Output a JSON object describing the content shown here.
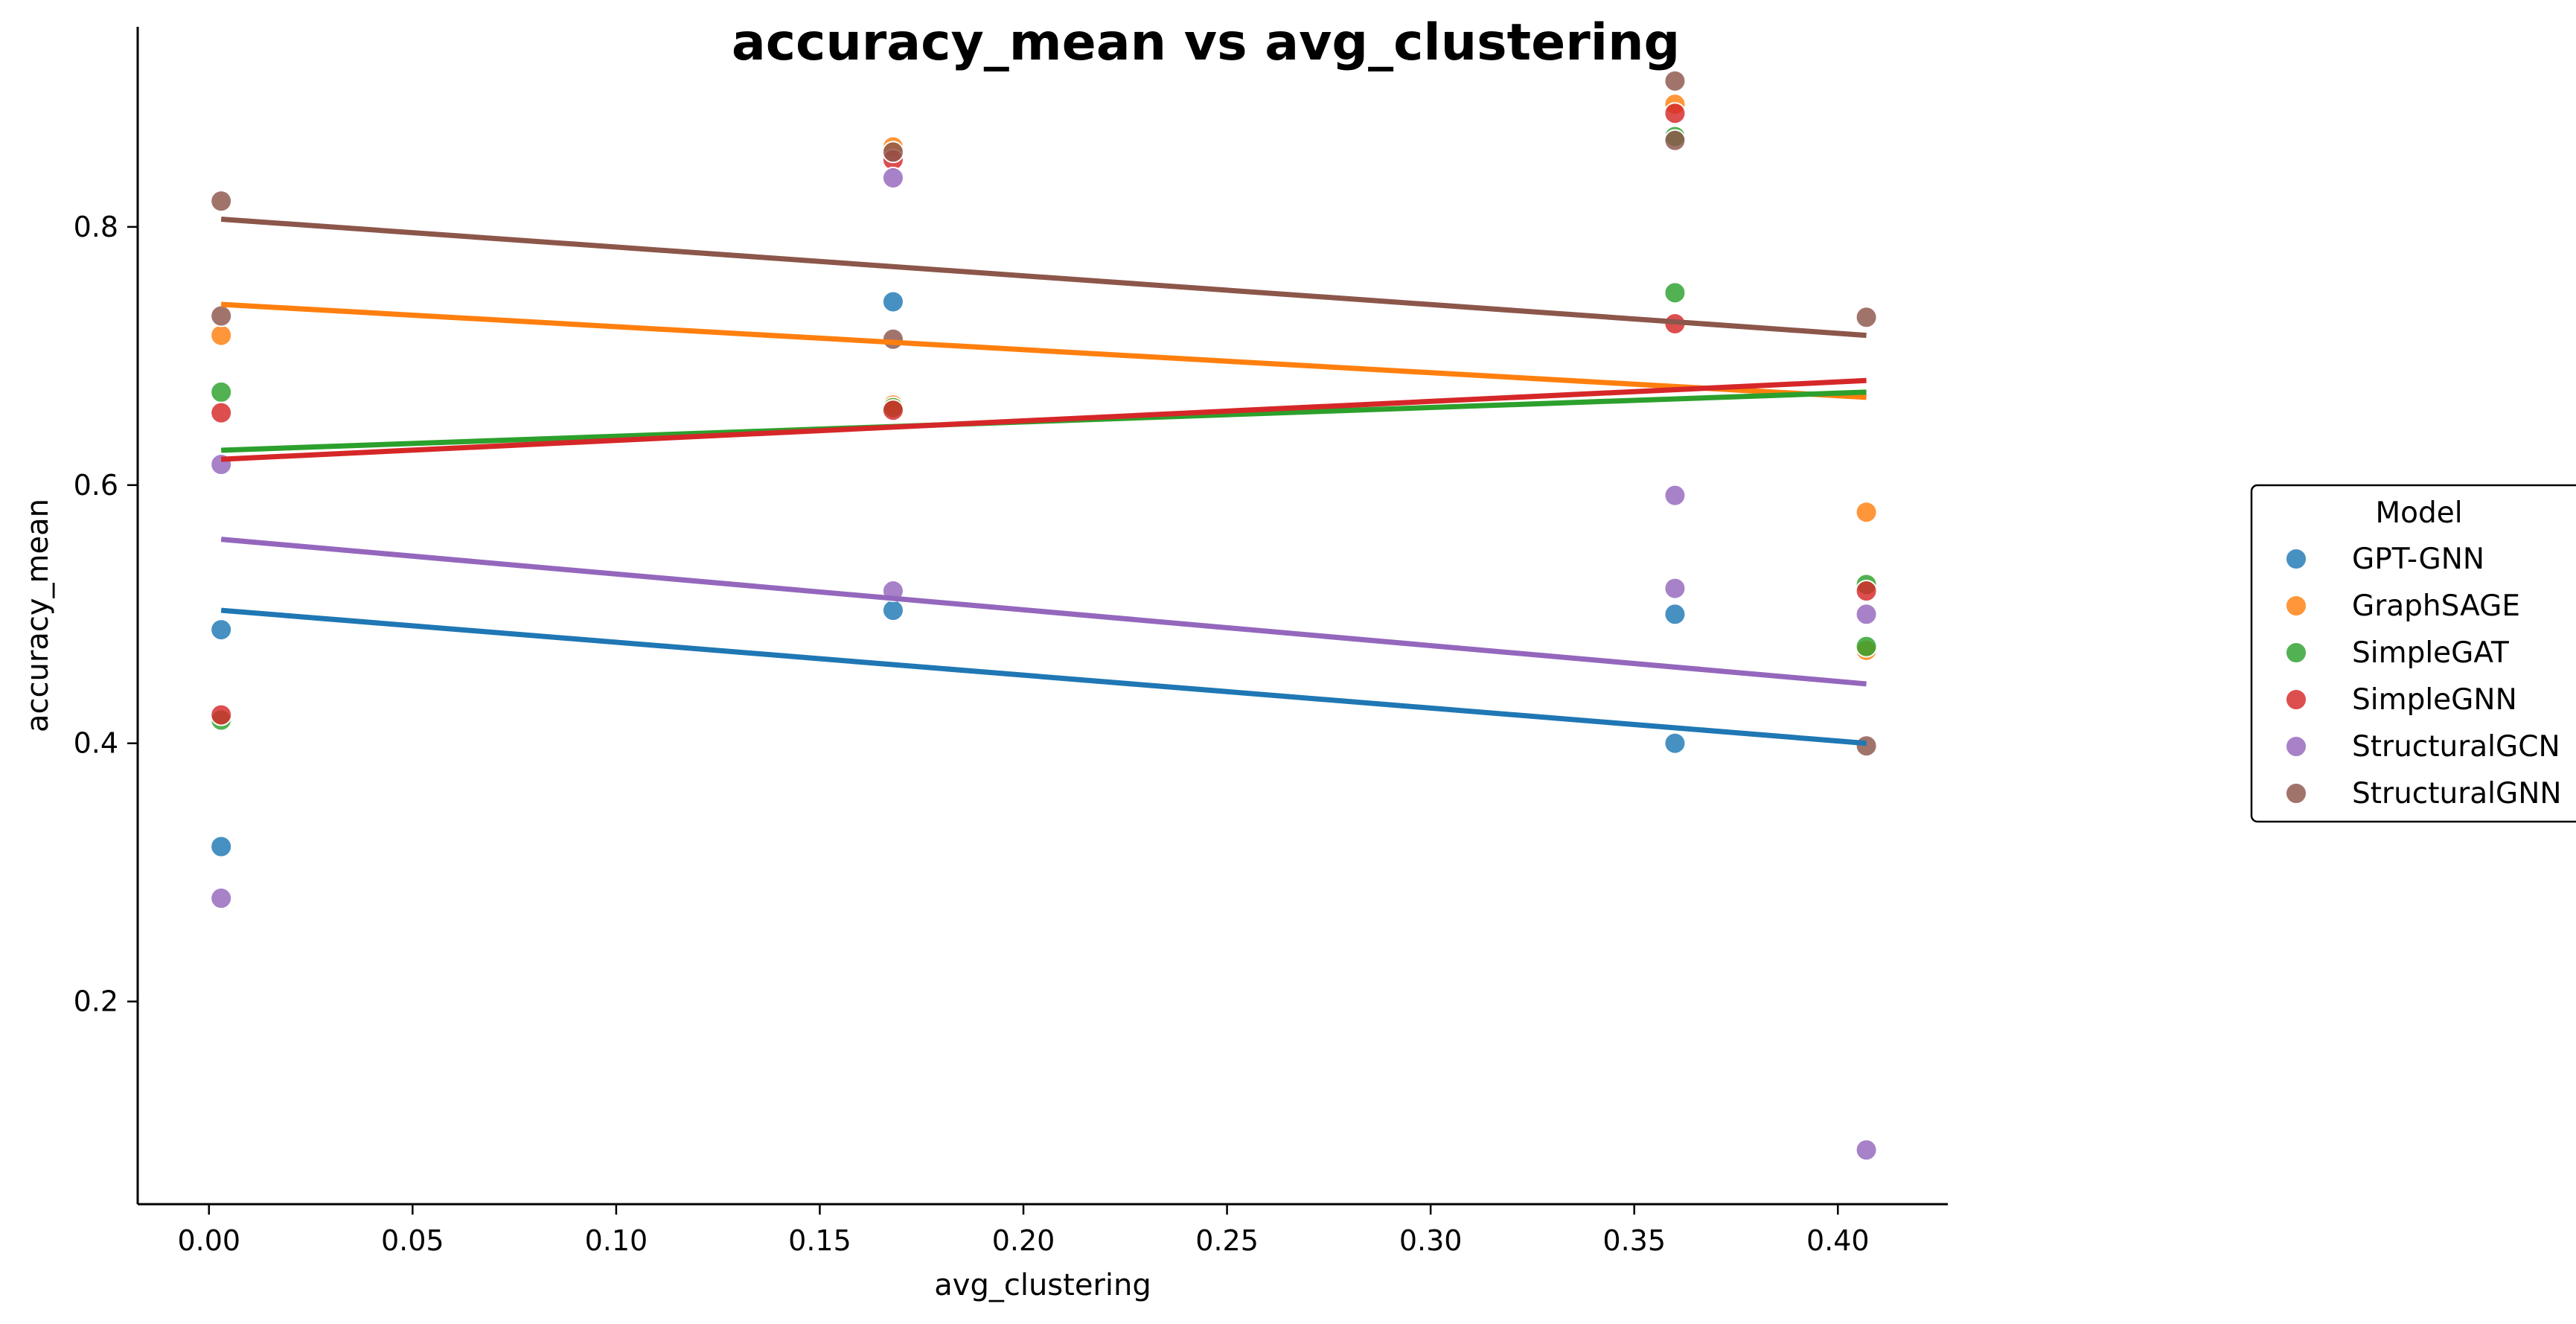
{
  "chart_data": {
    "type": "scatter",
    "title": "accuracy_mean vs avg_clustering",
    "xlabel": "avg_clustering",
    "ylabel": "accuracy_mean",
    "xlim": [
      -0.0175,
      0.427
    ],
    "ylim": [
      0.043,
      0.955
    ],
    "xticks": [
      "0.00",
      "0.05",
      "0.10",
      "0.15",
      "0.20",
      "0.25",
      "0.30",
      "0.35",
      "0.40"
    ],
    "yticks": [
      "0.2",
      "0.4",
      "0.6",
      "0.8"
    ],
    "grid": false,
    "legend": {
      "title": "Model",
      "placement": "center-right"
    },
    "series": [
      {
        "name": "GPT-GNN",
        "color": "#1f77b4",
        "points": [
          [
            0.003,
            0.488
          ],
          [
            0.003,
            0.32
          ],
          [
            0.168,
            0.742
          ],
          [
            0.168,
            0.503
          ],
          [
            0.36,
            0.5
          ],
          [
            0.36,
            0.4
          ]
        ],
        "trend": [
          [
            0.003,
            0.503
          ],
          [
            0.407,
            0.4
          ]
        ]
      },
      {
        "name": "GraphSAGE",
        "color": "#ff7f0e",
        "points": [
          [
            0.003,
            0.716
          ],
          [
            0.168,
            0.862
          ],
          [
            0.168,
            0.662
          ],
          [
            0.36,
            0.895
          ],
          [
            0.407,
            0.579
          ],
          [
            0.407,
            0.472
          ]
        ],
        "trend": [
          [
            0.003,
            0.74
          ],
          [
            0.407,
            0.668
          ]
        ]
      },
      {
        "name": "SimpleGAT",
        "color": "#2ca02c",
        "points": [
          [
            0.003,
            0.672
          ],
          [
            0.003,
            0.418
          ],
          [
            0.168,
            0.66
          ],
          [
            0.36,
            0.87
          ],
          [
            0.36,
            0.749
          ],
          [
            0.407,
            0.523
          ],
          [
            0.407,
            0.475
          ]
        ],
        "trend": [
          [
            0.003,
            0.627
          ],
          [
            0.407,
            0.672
          ]
        ]
      },
      {
        "name": "SimpleGNN",
        "color": "#d62728",
        "points": [
          [
            0.003,
            0.656
          ],
          [
            0.003,
            0.422
          ],
          [
            0.168,
            0.852
          ],
          [
            0.168,
            0.658
          ],
          [
            0.36,
            0.888
          ],
          [
            0.36,
            0.725
          ],
          [
            0.407,
            0.518
          ]
        ],
        "trend": [
          [
            0.003,
            0.62
          ],
          [
            0.407,
            0.681
          ]
        ]
      },
      {
        "name": "StructuralGCN",
        "color": "#9467bd",
        "points": [
          [
            0.003,
            0.616
          ],
          [
            0.003,
            0.28
          ],
          [
            0.168,
            0.838
          ],
          [
            0.168,
            0.518
          ],
          [
            0.36,
            0.592
          ],
          [
            0.36,
            0.52
          ],
          [
            0.407,
            0.5
          ],
          [
            0.407,
            0.085
          ]
        ],
        "trend": [
          [
            0.003,
            0.558
          ],
          [
            0.407,
            0.446
          ]
        ]
      },
      {
        "name": "StructuralGNN",
        "color": "#8c564b",
        "points": [
          [
            0.003,
            0.82
          ],
          [
            0.003,
            0.731
          ],
          [
            0.168,
            0.858
          ],
          [
            0.168,
            0.713
          ],
          [
            0.36,
            0.913
          ],
          [
            0.36,
            0.867
          ],
          [
            0.407,
            0.73
          ],
          [
            0.407,
            0.398
          ]
        ],
        "trend": [
          [
            0.003,
            0.806
          ],
          [
            0.407,
            0.716
          ]
        ]
      }
    ]
  }
}
